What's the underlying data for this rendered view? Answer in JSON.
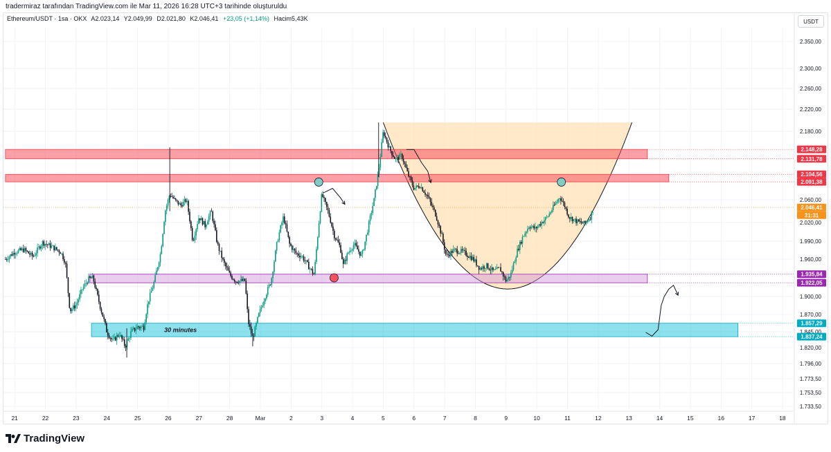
{
  "credit": "tradermiraz tarafından TradingView.com ile Mar 11, 2026 16:28 UTC+3 tarihinde oluşturuldu",
  "legend": {
    "symbol": "Ethereum/USDT · 1sa · OKX",
    "open": "A2.023,14",
    "high": "Y2.049,99",
    "low": "D2.021,80",
    "close": "K2.046,41",
    "change": "+23,05 (+1,14%)",
    "volume": "Hacim5,43K"
  },
  "currency": "USDT",
  "brand": "TradingView",
  "colors": {
    "up": "#089981",
    "down": "#131722",
    "resistance": "#f7525f",
    "support_purple": "#ce93d8",
    "support_cyan": "#00bcd4",
    "cup_fill": "#ffe0b2",
    "current_price": "#f7931a"
  },
  "chart_data": {
    "type": "candlestick",
    "title": "",
    "price_axis_ticks": [
      "2.350,00",
      "2.300,00",
      "2.260,00",
      "2.220,00",
      "2.180,00",
      "2.060,00",
      "2.020,00",
      "1.990,00",
      "1.960,00",
      "1.900,00",
      "1.870,00",
      "1.845,00",
      "1.820,00",
      "1.796,00",
      "1.773,50",
      "1.753,50",
      "1.733,50"
    ],
    "price_axis_tick_values": [
      2350,
      2300,
      2260,
      2220,
      2180,
      2060,
      2020,
      1990,
      1960,
      1900,
      1870,
      1845,
      1820,
      1796,
      1773.5,
      1753.5,
      1733.5
    ],
    "time_axis_labels": [
      "21",
      "22",
      "23",
      "24",
      "25",
      "26",
      "27",
      "28",
      "Mar",
      "2",
      "3",
      "4",
      "5",
      "6",
      "7",
      "8",
      "9",
      "10",
      "11",
      "12",
      "13",
      "14",
      "15",
      "16",
      "17",
      "18"
    ],
    "time_axis_day_index": [
      -8,
      -7,
      -6,
      -5,
      -4,
      -3,
      -2,
      -1,
      0,
      1,
      2,
      3,
      4,
      5,
      6,
      7,
      8,
      9,
      10,
      11,
      12,
      13,
      14,
      15,
      16,
      17
    ],
    "price_labels": [
      {
        "text": "2.148,28",
        "value": 2148.28,
        "color": "#f23645"
      },
      {
        "text": "2.131,78",
        "value": 2131.78,
        "color": "#f23645"
      },
      {
        "text": "2.104,56",
        "value": 2104.56,
        "color": "#f23645"
      },
      {
        "text": "2.091,38",
        "value": 2091.38,
        "color": "#f23645"
      },
      {
        "text": "2.046,41",
        "value": 2046.41,
        "color": "#f7931a"
      },
      {
        "text": "31:31",
        "value": 2033,
        "color": "#f7931a"
      },
      {
        "text": "1.935,84",
        "value": 1935.84,
        "color": "#9c27b0"
      },
      {
        "text": "1.922,05",
        "value": 1922.05,
        "color": "#9c27b0"
      },
      {
        "text": "1.857,29",
        "value": 1857.29,
        "color": "#00acc1"
      },
      {
        "text": "1.837,24",
        "value": 1837.24,
        "color": "#00acc1"
      }
    ],
    "current_price": 2046.41,
    "zones": [
      {
        "kind": "resistance",
        "top": 2148.28,
        "bottom": 2131.78,
        "from_day": -8.3,
        "to_day": 12.6
      },
      {
        "kind": "resistance",
        "top": 2104.56,
        "bottom": 2091.38,
        "from_day": -8.3,
        "to_day": 13.3
      },
      {
        "kind": "support",
        "top": 1935.84,
        "bottom": 1922.05,
        "from_day": -5.55,
        "to_day": 12.6
      },
      {
        "kind": "support",
        "top": 1857.29,
        "bottom": 1837.24,
        "from_day": -5.5,
        "to_day": 15.55,
        "label": "30 minutes"
      }
    ],
    "cup": {
      "left_day": 4.0,
      "right_day": 12.1,
      "bottom_day": 8.05,
      "bottom_price": 1912,
      "top_price": 2196
    },
    "markers": [
      {
        "day": 1.9,
        "price": 2091,
        "color": "#80cbc4"
      },
      {
        "day": 2.4,
        "price": 1930,
        "color": "#f7525f"
      },
      {
        "day": 9.8,
        "price": 2091,
        "color": "#80cbc4"
      }
    ],
    "ohlc_path": [
      [
        -8.3,
        1960
      ],
      [
        -8.0,
        1972
      ],
      [
        -7.7,
        1976
      ],
      [
        -7.4,
        1964
      ],
      [
        -7.1,
        1988
      ],
      [
        -6.8,
        1981
      ],
      [
        -6.5,
        1972
      ],
      [
        -6.35,
        1955
      ],
      [
        -6.2,
        1876
      ],
      [
        -6.0,
        1886
      ],
      [
        -5.8,
        1912
      ],
      [
        -5.6,
        1928
      ],
      [
        -5.45,
        1930
      ],
      [
        -5.2,
        1880
      ],
      [
        -5.0,
        1845
      ],
      [
        -4.8,
        1830
      ],
      [
        -4.6,
        1842
      ],
      [
        -4.4,
        1822
      ],
      [
        -4.2,
        1845
      ],
      [
        -4.0,
        1852
      ],
      [
        -3.8,
        1852
      ],
      [
        -3.65,
        1892
      ],
      [
        -3.45,
        1925
      ],
      [
        -3.25,
        1970
      ],
      [
        -3.1,
        2040
      ],
      [
        -2.95,
        2070
      ],
      [
        -2.8,
        2060
      ],
      [
        -2.6,
        2050
      ],
      [
        -2.4,
        2060
      ],
      [
        -2.2,
        1990
      ],
      [
        -2.0,
        2030
      ],
      [
        -1.8,
        2015
      ],
      [
        -1.6,
        2040
      ],
      [
        -1.4,
        1985
      ],
      [
        -1.2,
        1955
      ],
      [
        -1.0,
        1935
      ],
      [
        -0.8,
        1925
      ],
      [
        -0.5,
        1925
      ],
      [
        -0.4,
        1860
      ],
      [
        -0.25,
        1835
      ],
      [
        -0.05,
        1870
      ],
      [
        0.15,
        1900
      ],
      [
        0.35,
        1925
      ],
      [
        0.55,
        1990
      ],
      [
        0.75,
        2030
      ],
      [
        0.95,
        1985
      ],
      [
        1.15,
        1970
      ],
      [
        1.35,
        1965
      ],
      [
        1.55,
        1950
      ],
      [
        1.75,
        1935
      ],
      [
        1.85,
        1990
      ],
      [
        2.0,
        2070
      ],
      [
        2.2,
        2040
      ],
      [
        2.4,
        2000
      ],
      [
        2.6,
        1980
      ],
      [
        2.7,
        1950
      ],
      [
        2.85,
        1970
      ],
      [
        3.05,
        1985
      ],
      [
        3.3,
        1965
      ],
      [
        3.5,
        2010
      ],
      [
        3.7,
        2060
      ],
      [
        3.85,
        2110
      ],
      [
        4.0,
        2180
      ],
      [
        4.2,
        2150
      ],
      [
        4.4,
        2130
      ],
      [
        4.6,
        2138
      ],
      [
        4.8,
        2105
      ],
      [
        5.0,
        2080
      ],
      [
        5.2,
        2085
      ],
      [
        5.45,
        2065
      ],
      [
        5.7,
        2035
      ],
      [
        5.9,
        2000
      ],
      [
        6.05,
        1965
      ],
      [
        6.3,
        1975
      ],
      [
        6.6,
        1972
      ],
      [
        6.9,
        1962
      ],
      [
        7.15,
        1945
      ],
      [
        7.35,
        1950
      ],
      [
        7.6,
        1940
      ],
      [
        7.8,
        1945
      ],
      [
        8.0,
        1925
      ],
      [
        8.15,
        1935
      ],
      [
        8.35,
        1972
      ],
      [
        8.55,
        1998
      ],
      [
        8.75,
        2015
      ],
      [
        8.95,
        2010
      ],
      [
        9.15,
        2020
      ],
      [
        9.35,
        2030
      ],
      [
        9.55,
        2048
      ],
      [
        9.75,
        2065
      ],
      [
        9.9,
        2050
      ],
      [
        10.05,
        2030
      ],
      [
        10.3,
        2022
      ],
      [
        10.55,
        2018
      ],
      [
        10.75,
        2030
      ],
      [
        10.85,
        2046.41
      ]
    ],
    "projection": [
      [
        12.55,
        1844
      ],
      [
        12.75,
        1838
      ],
      [
        12.95,
        1848
      ],
      [
        13.05,
        1885
      ],
      [
        13.15,
        1900
      ],
      [
        13.3,
        1912
      ],
      [
        13.45,
        1918
      ],
      [
        13.6,
        1902
      ]
    ],
    "arrows": [
      [
        [
          2.05,
          2072
        ],
        [
          2.35,
          2080
        ],
        [
          2.6,
          2064
        ],
        [
          2.75,
          2052
        ]
      ],
      [
        [
          4.75,
          2148
        ],
        [
          5.0,
          2148
        ],
        [
          5.25,
          2125
        ],
        [
          5.45,
          2110
        ],
        [
          5.55,
          2090
        ]
      ]
    ]
  }
}
